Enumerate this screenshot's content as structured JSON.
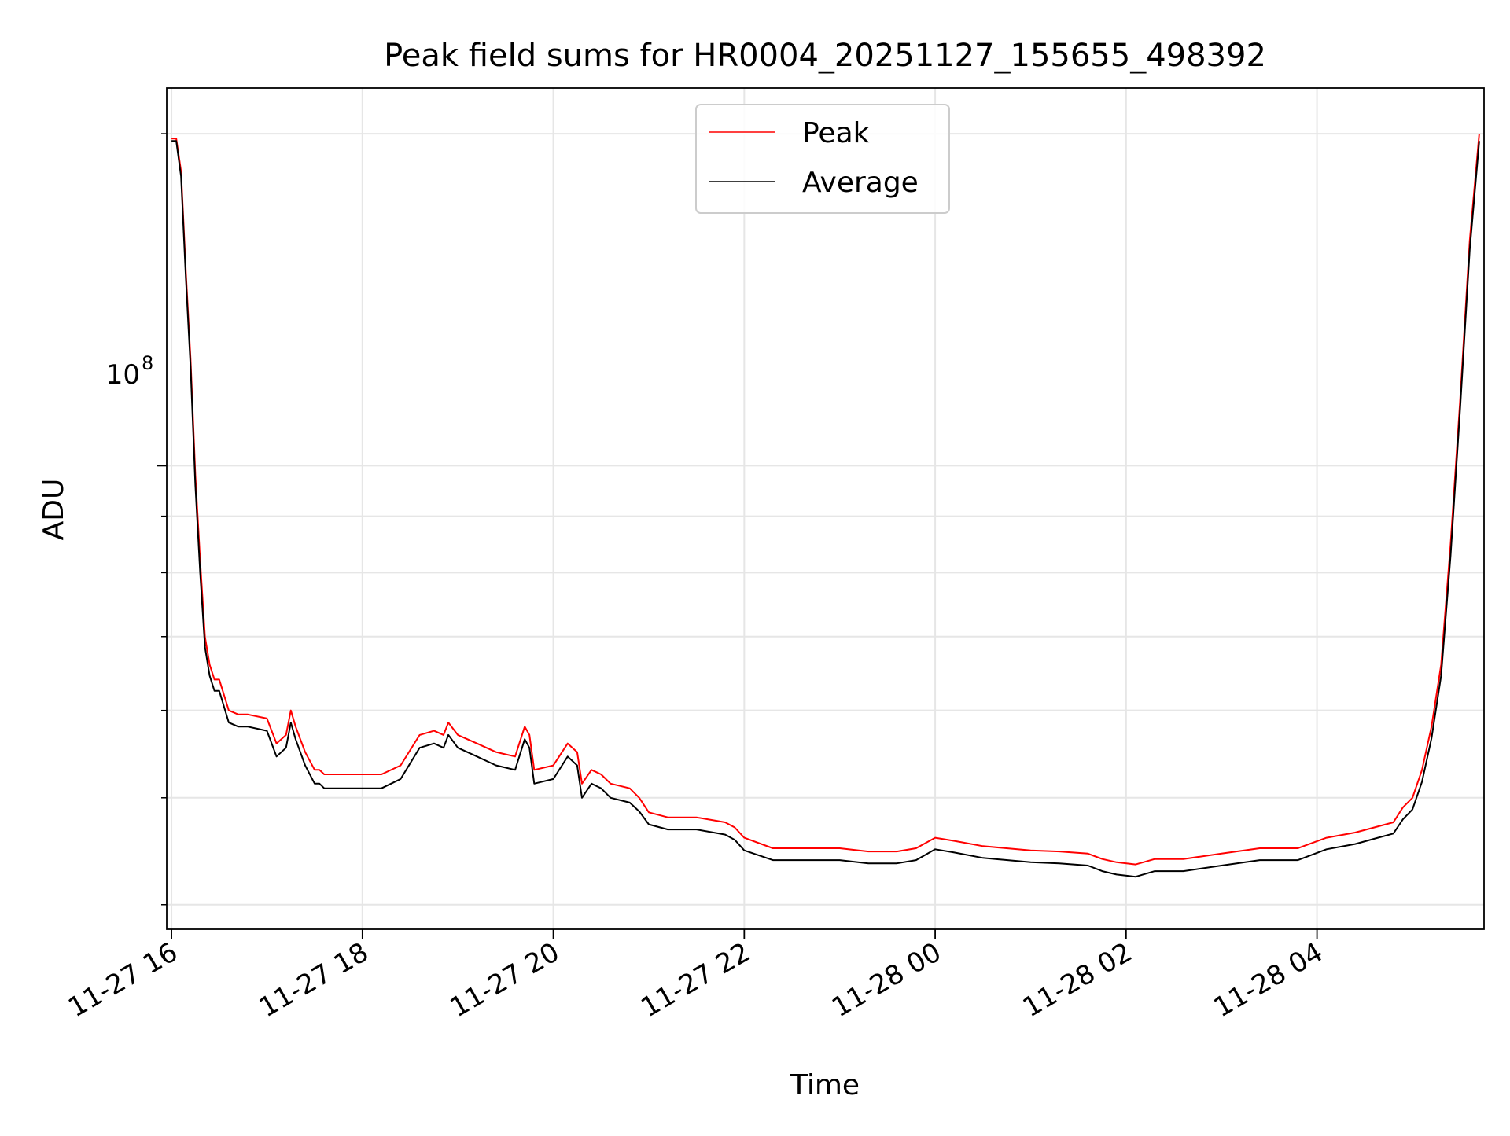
{
  "chart_data": {
    "type": "line",
    "title": "Peak field sums for HR0004_20251127_155655_498392",
    "xlabel": "Time",
    "ylabel": "ADU",
    "yscale": "log",
    "y_major_tick_label": "10",
    "y_major_tick_exponent": "8",
    "y_major_tick_value": 100000000,
    "ylim": [
      38000000,
      220000000
    ],
    "xlim_hours": [
      -0.05,
      13.75
    ],
    "x_tick_labels": [
      "11-27 16",
      "11-27 18",
      "11-27 20",
      "11-27 22",
      "11-28 00",
      "11-28 02",
      "11-28 04"
    ],
    "x_tick_hours": [
      0,
      2,
      4,
      6,
      8,
      10,
      12
    ],
    "x_unit_note": "hours after 2025-11-27 16:00",
    "grid": true,
    "legend": {
      "position": "top-center",
      "entries": [
        "Peak",
        "Average"
      ]
    },
    "series": [
      {
        "name": "Peak",
        "color": "#ff0000",
        "x_hours": [
          0,
          0.05,
          0.1,
          0.15,
          0.2,
          0.25,
          0.3,
          0.35,
          0.4,
          0.45,
          0.5,
          0.6,
          0.7,
          0.8,
          1.0,
          1.1,
          1.2,
          1.25,
          1.3,
          1.4,
          1.5,
          1.55,
          1.6,
          1.7,
          1.8,
          2.0,
          2.2,
          2.4,
          2.6,
          2.75,
          2.85,
          2.9,
          3.0,
          3.2,
          3.4,
          3.6,
          3.7,
          3.75,
          3.8,
          4.0,
          4.15,
          4.25,
          4.3,
          4.4,
          4.5,
          4.6,
          4.8,
          4.9,
          5.0,
          5.2,
          5.5,
          5.8,
          5.9,
          6.0,
          6.3,
          6.6,
          7.0,
          7.3,
          7.6,
          7.8,
          8.0,
          8.2,
          8.5,
          9.0,
          9.3,
          9.6,
          9.75,
          9.9,
          10.1,
          10.3,
          10.6,
          11.0,
          11.4,
          11.8,
          12.1,
          12.4,
          12.6,
          12.8,
          12.9,
          13.0,
          13.1,
          13.2,
          13.3,
          13.4,
          13.5,
          13.6,
          13.7
        ],
        "values": [
          198000000,
          198000000,
          185000000,
          150000000,
          125000000,
          98000000,
          82000000,
          70000000,
          66000000,
          64000000,
          64000000,
          60000000,
          59500000,
          59500000,
          59000000,
          56000000,
          57000000,
          60000000,
          58000000,
          55000000,
          53000000,
          53000000,
          52500000,
          52500000,
          52500000,
          52500000,
          52500000,
          53500000,
          57000000,
          57500000,
          57000000,
          58500000,
          57000000,
          56000000,
          55000000,
          54500000,
          58000000,
          57000000,
          53000000,
          53500000,
          56000000,
          55000000,
          51500000,
          53000000,
          52500000,
          51500000,
          51000000,
          50000000,
          48500000,
          48000000,
          48000000,
          47500000,
          47000000,
          46000000,
          45000000,
          45000000,
          45000000,
          44700000,
          44700000,
          45000000,
          46000000,
          45700000,
          45200000,
          44800000,
          44700000,
          44500000,
          44000000,
          43700000,
          43500000,
          44000000,
          44000000,
          44500000,
          45000000,
          45000000,
          46000000,
          46500000,
          47000000,
          47500000,
          49000000,
          50000000,
          53000000,
          58000000,
          66000000,
          85000000,
          115000000,
          160000000,
          200000000
        ]
      },
      {
        "name": "Average",
        "color": "#000000",
        "x_hours": [
          0,
          0.05,
          0.1,
          0.15,
          0.2,
          0.25,
          0.3,
          0.35,
          0.4,
          0.45,
          0.5,
          0.6,
          0.7,
          0.8,
          1.0,
          1.1,
          1.2,
          1.25,
          1.3,
          1.4,
          1.5,
          1.55,
          1.6,
          1.7,
          1.8,
          2.0,
          2.2,
          2.4,
          2.6,
          2.75,
          2.85,
          2.9,
          3.0,
          3.2,
          3.4,
          3.6,
          3.7,
          3.75,
          3.8,
          4.0,
          4.15,
          4.25,
          4.3,
          4.4,
          4.5,
          4.6,
          4.8,
          4.9,
          5.0,
          5.2,
          5.5,
          5.8,
          5.9,
          6.0,
          6.3,
          6.6,
          7.0,
          7.3,
          7.6,
          7.8,
          8.0,
          8.2,
          8.5,
          9.0,
          9.3,
          9.6,
          9.75,
          9.9,
          10.1,
          10.3,
          10.6,
          11.0,
          11.4,
          11.8,
          12.1,
          12.4,
          12.6,
          12.8,
          12.9,
          13.0,
          13.1,
          13.2,
          13.3,
          13.4,
          13.5,
          13.6,
          13.7
        ],
        "values": [
          197000000,
          197000000,
          183000000,
          148000000,
          123000000,
          96000000,
          80000000,
          68500000,
          64500000,
          62500000,
          62500000,
          58500000,
          58000000,
          58000000,
          57500000,
          54500000,
          55500000,
          58500000,
          56500000,
          53500000,
          51500000,
          51500000,
          51000000,
          51000000,
          51000000,
          51000000,
          51000000,
          52000000,
          55500000,
          56000000,
          55500000,
          57000000,
          55500000,
          54500000,
          53500000,
          53000000,
          56500000,
          55500000,
          51500000,
          52000000,
          54500000,
          53500000,
          50000000,
          51500000,
          51000000,
          50000000,
          49500000,
          48600000,
          47300000,
          46800000,
          46800000,
          46300000,
          45800000,
          44800000,
          43900000,
          43900000,
          43900000,
          43600000,
          43600000,
          43900000,
          44900000,
          44600000,
          44100000,
          43700000,
          43600000,
          43400000,
          42900000,
          42600000,
          42400000,
          42900000,
          42900000,
          43400000,
          43900000,
          43900000,
          44900000,
          45400000,
          45900000,
          46400000,
          47800000,
          48800000,
          51700000,
          56600000,
          64500000,
          83000000,
          113000000,
          157000000,
          197000000
        ]
      }
    ]
  }
}
